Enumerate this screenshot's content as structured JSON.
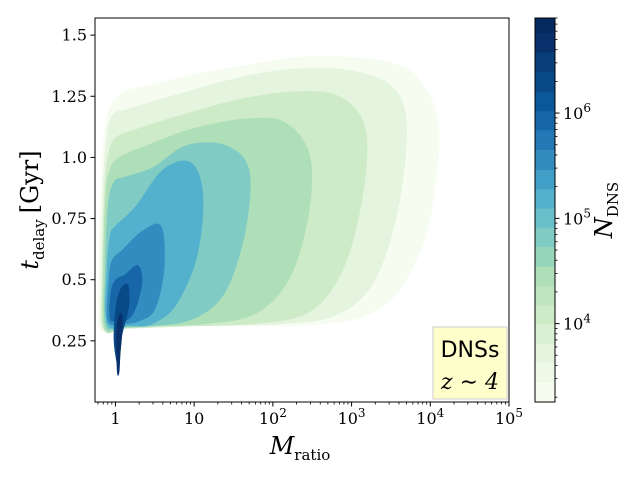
{
  "chart_data": {
    "type": "heatmap",
    "title": "",
    "xlabel": {
      "main": "M",
      "sub": "ratio"
    },
    "ylabel": {
      "main": "t",
      "sub": "delay",
      "unit": "[Gyr]"
    },
    "x_scale": "log",
    "xlim": [
      0.55,
      100000
    ],
    "x_ticks": [
      {
        "value": 1,
        "label": "1"
      },
      {
        "value": 10,
        "label": "10"
      },
      {
        "value": 100,
        "label": "10",
        "exp": "2"
      },
      {
        "value": 1000,
        "label": "10",
        "exp": "3"
      },
      {
        "value": 10000,
        "label": "10",
        "exp": "4"
      },
      {
        "value": 100000,
        "label": "10",
        "exp": "5"
      }
    ],
    "ylim": [
      0.0,
      1.57
    ],
    "y_ticks": [
      {
        "value": 0.25,
        "label": "0.25"
      },
      {
        "value": 0.5,
        "label": "0.5"
      },
      {
        "value": 0.75,
        "label": "0.75"
      },
      {
        "value": 1.0,
        "label": "1.0"
      },
      {
        "value": 1.25,
        "label": "1.25"
      },
      {
        "value": 1.5,
        "label": "1.5"
      }
    ],
    "grid": false,
    "colorbar": {
      "label": {
        "main": "N",
        "sub": "DNS"
      },
      "scale": "log",
      "range": [
        1800,
        8000000
      ],
      "ticks": [
        {
          "value": 10000,
          "label": "10",
          "exp": "4"
        },
        {
          "value": 100000,
          "label": "10",
          "exp": "5"
        },
        {
          "value": 1000000,
          "label": "10",
          "exp": "6"
        }
      ],
      "levels": [
        1800,
        2800,
        4300,
        6500,
        10000,
        15000,
        23000,
        35000,
        54000,
        82000,
        125000,
        190000,
        290000,
        450000,
        690000,
        1050000,
        1600000,
        2500000,
        3800000,
        5800000,
        8000000
      ],
      "colors": [
        "#f7fcf0",
        "#eef8e7",
        "#e4f4df",
        "#d9f0d3",
        "#cdebc6",
        "#bfe5bf",
        "#aedfb8",
        "#98d6bb",
        "#80cbc4",
        "#69bfca",
        "#53b1cd",
        "#429fc8",
        "#338cbf",
        "#2479b4",
        "#1767a8",
        "#0b5899",
        "#084a88",
        "#083f7a",
        "#08306b",
        "#062a60"
      ]
    },
    "contours": [
      {
        "level_index": 0,
        "points": [
          [
            0.65,
            0.29
          ],
          [
            0.6,
            0.4
          ],
          [
            0.62,
            0.7
          ],
          [
            0.68,
            1.0
          ],
          [
            0.75,
            1.15
          ],
          [
            0.9,
            1.22
          ],
          [
            1.3,
            1.27
          ],
          [
            3,
            1.3
          ],
          [
            10,
            1.34
          ],
          [
            50,
            1.38
          ],
          [
            200,
            1.41
          ],
          [
            1000,
            1.41
          ],
          [
            4000,
            1.38
          ],
          [
            8000,
            1.3
          ],
          [
            13000,
            1.12
          ],
          [
            10000,
            0.75
          ],
          [
            5000,
            0.5
          ],
          [
            2000,
            0.37
          ],
          [
            500,
            0.32
          ],
          [
            50,
            0.31
          ],
          [
            5,
            0.31
          ],
          [
            1.2,
            0.3
          ]
        ]
      },
      {
        "level_index": 2,
        "points": [
          [
            0.68,
            0.3
          ],
          [
            0.65,
            0.45
          ],
          [
            0.68,
            0.8
          ],
          [
            0.75,
            1.05
          ],
          [
            0.9,
            1.17
          ],
          [
            1.5,
            1.2
          ],
          [
            5,
            1.25
          ],
          [
            30,
            1.32
          ],
          [
            150,
            1.36
          ],
          [
            800,
            1.36
          ],
          [
            3000,
            1.3
          ],
          [
            5000,
            1.15
          ],
          [
            4000,
            0.8
          ],
          [
            2000,
            0.5
          ],
          [
            700,
            0.36
          ],
          [
            150,
            0.32
          ],
          [
            10,
            0.31
          ],
          [
            1.3,
            0.3
          ]
        ]
      },
      {
        "level_index": 4,
        "points": [
          [
            0.7,
            0.3
          ],
          [
            0.68,
            0.5
          ],
          [
            0.72,
            0.85
          ],
          [
            0.8,
            1.0
          ],
          [
            1.0,
            1.08
          ],
          [
            2,
            1.12
          ],
          [
            8,
            1.18
          ],
          [
            40,
            1.24
          ],
          [
            200,
            1.27
          ],
          [
            700,
            1.25
          ],
          [
            1500,
            1.12
          ],
          [
            1400,
            0.85
          ],
          [
            800,
            0.55
          ],
          [
            300,
            0.37
          ],
          [
            60,
            0.32
          ],
          [
            8,
            0.31
          ],
          [
            1.3,
            0.3
          ]
        ]
      },
      {
        "level_index": 6,
        "points": [
          [
            0.72,
            0.3
          ],
          [
            0.7,
            0.55
          ],
          [
            0.75,
            0.85
          ],
          [
            0.85,
            0.95
          ],
          [
            1.1,
            1.0
          ],
          [
            2.5,
            1.05
          ],
          [
            10,
            1.12
          ],
          [
            50,
            1.16
          ],
          [
            150,
            1.14
          ],
          [
            300,
            1.0
          ],
          [
            280,
            0.75
          ],
          [
            160,
            0.5
          ],
          [
            60,
            0.36
          ],
          [
            15,
            0.32
          ],
          [
            3,
            0.31
          ],
          [
            1.2,
            0.3
          ]
        ]
      },
      {
        "level_index": 8,
        "points": [
          [
            0.75,
            0.31
          ],
          [
            0.74,
            0.55
          ],
          [
            0.8,
            0.8
          ],
          [
            0.95,
            0.9
          ],
          [
            1.3,
            0.92
          ],
          [
            3,
            0.96
          ],
          [
            8,
            1.05
          ],
          [
            25,
            1.05
          ],
          [
            50,
            0.95
          ],
          [
            45,
            0.7
          ],
          [
            25,
            0.45
          ],
          [
            10,
            0.34
          ],
          [
            3,
            0.31
          ],
          [
            1.2,
            0.31
          ]
        ]
      },
      {
        "level_index": 10,
        "points": [
          [
            0.78,
            0.32
          ],
          [
            0.78,
            0.55
          ],
          [
            0.85,
            0.68
          ],
          [
            1.0,
            0.72
          ],
          [
            1.8,
            0.8
          ],
          [
            4,
            0.95
          ],
          [
            9,
            0.98
          ],
          [
            13,
            0.85
          ],
          [
            11,
            0.6
          ],
          [
            6,
            0.4
          ],
          [
            3,
            0.32
          ],
          [
            1.5,
            0.31
          ]
        ]
      },
      {
        "level_index": 12,
        "points": [
          [
            0.8,
            0.33
          ],
          [
            0.82,
            0.5
          ],
          [
            0.9,
            0.58
          ],
          [
            1.2,
            0.62
          ],
          [
            2.2,
            0.7
          ],
          [
            3.8,
            0.72
          ],
          [
            4.2,
            0.55
          ],
          [
            3.2,
            0.38
          ],
          [
            2,
            0.33
          ],
          [
            1.3,
            0.32
          ]
        ]
      },
      {
        "level_index": 14,
        "points": [
          [
            0.85,
            0.34
          ],
          [
            0.87,
            0.45
          ],
          [
            1.0,
            0.5
          ],
          [
            1.3,
            0.52
          ],
          [
            1.9,
            0.56
          ],
          [
            2.2,
            0.5
          ],
          [
            1.9,
            0.4
          ],
          [
            1.5,
            0.34
          ],
          [
            1.1,
            0.33
          ]
        ]
      },
      {
        "level_index": 16,
        "points": [
          [
            0.95,
            0.25
          ],
          [
            0.98,
            0.35
          ],
          [
            1.05,
            0.42
          ],
          [
            1.2,
            0.47
          ],
          [
            1.45,
            0.48
          ],
          [
            1.5,
            0.4
          ],
          [
            1.35,
            0.33
          ],
          [
            1.2,
            0.26
          ],
          [
            1.12,
            0.15
          ],
          [
            1.05,
            0.15
          ]
        ]
      },
      {
        "level_index": 18,
        "points": [
          [
            1.05,
            0.12
          ],
          [
            1.02,
            0.25
          ],
          [
            1.05,
            0.32
          ],
          [
            1.12,
            0.36
          ],
          [
            1.22,
            0.35
          ],
          [
            1.22,
            0.28
          ],
          [
            1.16,
            0.2
          ],
          [
            1.12,
            0.12
          ]
        ]
      }
    ],
    "annotation": {
      "lines": [
        "DNSs",
        "z ∼ 4"
      ],
      "background": "#ffffcc",
      "placement": "bottom-right"
    }
  }
}
